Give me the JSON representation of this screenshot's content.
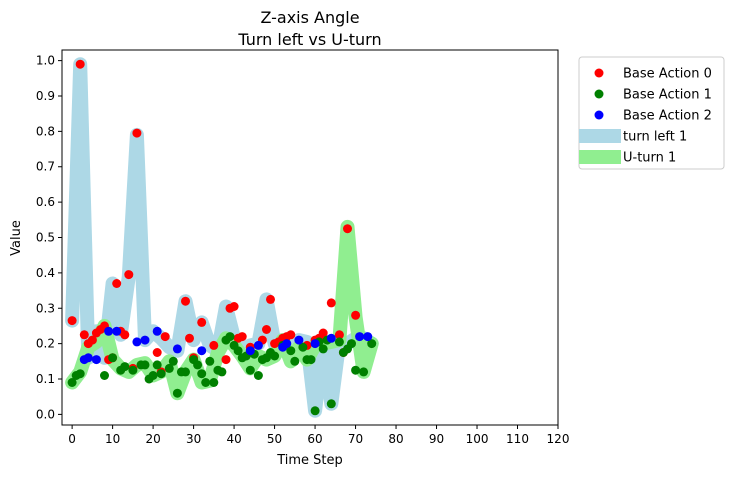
{
  "chart_data": {
    "type": "scatter",
    "title": "Z-axis Angle",
    "subtitle": "Turn left vs U-turn",
    "xlabel": "Time Step",
    "ylabel": "Value",
    "xlim": [
      -2.5,
      120
    ],
    "ylim": [
      -0.03,
      1.03
    ],
    "xticks": [
      0,
      10,
      20,
      30,
      40,
      50,
      60,
      70,
      80,
      90,
      100,
      110,
      120
    ],
    "xtick_labels": [
      "0",
      "10",
      "20",
      "30",
      "40",
      "50",
      "60",
      "70",
      "80",
      "90",
      "100",
      "110",
      "120"
    ],
    "yticks": [
      0.0,
      0.1,
      0.2,
      0.3,
      0.4,
      0.5,
      0.6,
      0.7,
      0.8,
      0.9,
      1.0
    ],
    "ytick_labels": [
      "0.0",
      "0.1",
      "0.2",
      "0.3",
      "0.4",
      "0.5",
      "0.6",
      "0.7",
      "0.8",
      "0.9",
      "1.0"
    ],
    "grid": false,
    "legend_position": "outside-right-top",
    "colors": {
      "base_action_0": "#ff0000",
      "base_action_1": "#008000",
      "base_action_2": "#0000ff",
      "turn_left_band": "#add8e6",
      "uturn_band": "#90ee90"
    },
    "bands": [
      {
        "name": "turn left 1",
        "color": "#add8e6",
        "x": [
          0,
          2,
          4,
          6,
          8,
          10,
          12,
          14,
          16,
          18,
          20,
          22,
          24,
          26,
          28,
          30,
          32,
          34,
          36,
          38,
          40,
          42,
          44,
          46,
          48,
          50,
          52,
          54,
          56,
          58,
          60,
          62,
          64,
          66,
          68,
          70,
          72,
          74
        ],
        "y": [
          0.265,
          0.99,
          0.16,
          0.235,
          0.16,
          0.37,
          0.225,
          0.39,
          0.79,
          0.21,
          0.235,
          0.215,
          0.19,
          0.18,
          0.32,
          0.21,
          0.26,
          0.195,
          0.18,
          0.305,
          0.215,
          0.185,
          0.195,
          0.2,
          0.325,
          0.2,
          0.21,
          0.2,
          0.21,
          0.205,
          0.01,
          0.21,
          0.03,
          0.205,
          0.2,
          0.215,
          0.215,
          0.2
        ]
      },
      {
        "name": "U-turn 1",
        "color": "#90ee90",
        "x": [
          0,
          2,
          4,
          6,
          8,
          10,
          12,
          14,
          16,
          18,
          20,
          22,
          24,
          26,
          28,
          30,
          32,
          34,
          36,
          38,
          40,
          42,
          44,
          46,
          48,
          50,
          52,
          54,
          56,
          58,
          60,
          62,
          64,
          66,
          68,
          70,
          72,
          74
        ],
        "y": [
          0.09,
          0.12,
          0.19,
          0.205,
          0.25,
          0.155,
          0.13,
          0.12,
          0.14,
          0.145,
          0.11,
          0.12,
          0.15,
          0.06,
          0.12,
          0.155,
          0.09,
          0.095,
          0.175,
          0.215,
          0.195,
          0.165,
          0.13,
          0.165,
          0.155,
          0.165,
          0.21,
          0.15,
          0.19,
          0.155,
          0.195,
          0.2,
          0.205,
          0.21,
          0.53,
          0.275,
          0.12,
          0.2
        ]
      }
    ],
    "series": [
      {
        "name": "Base Action 0",
        "color": "#ff0000",
        "points": [
          [
            0,
            0.265
          ],
          [
            2,
            0.99
          ],
          [
            3,
            0.225
          ],
          [
            4,
            0.2
          ],
          [
            5,
            0.21
          ],
          [
            6,
            0.23
          ],
          [
            7,
            0.24
          ],
          [
            8,
            0.25
          ],
          [
            9,
            0.155
          ],
          [
            10,
            0.16
          ],
          [
            11,
            0.37
          ],
          [
            12,
            0.235
          ],
          [
            13,
            0.225
          ],
          [
            14,
            0.395
          ],
          [
            15,
            0.13
          ],
          [
            16,
            0.795
          ],
          [
            21,
            0.175
          ],
          [
            22,
            0.12
          ],
          [
            23,
            0.22
          ],
          [
            28,
            0.32
          ],
          [
            29,
            0.215
          ],
          [
            30,
            0.16
          ],
          [
            32,
            0.26
          ],
          [
            35,
            0.195
          ],
          [
            38,
            0.155
          ],
          [
            39,
            0.3
          ],
          [
            40,
            0.305
          ],
          [
            41,
            0.215
          ],
          [
            42,
            0.22
          ],
          [
            44,
            0.19
          ],
          [
            47,
            0.21
          ],
          [
            48,
            0.24
          ],
          [
            49,
            0.325
          ],
          [
            50,
            0.2
          ],
          [
            51,
            0.205
          ],
          [
            52,
            0.215
          ],
          [
            53,
            0.22
          ],
          [
            54,
            0.225
          ],
          [
            58,
            0.195
          ],
          [
            60,
            0.21
          ],
          [
            61,
            0.215
          ],
          [
            62,
            0.23
          ],
          [
            64,
            0.315
          ],
          [
            66,
            0.225
          ],
          [
            67,
            0.175
          ],
          [
            68,
            0.525
          ],
          [
            70,
            0.28
          ]
        ]
      },
      {
        "name": "Base Action 1",
        "color": "#008000",
        "points": [
          [
            0,
            0.09
          ],
          [
            1,
            0.11
          ],
          [
            2,
            0.115
          ],
          [
            8,
            0.11
          ],
          [
            10,
            0.16
          ],
          [
            12,
            0.125
          ],
          [
            13,
            0.135
          ],
          [
            15,
            0.125
          ],
          [
            17,
            0.14
          ],
          [
            18,
            0.14
          ],
          [
            19,
            0.1
          ],
          [
            20,
            0.11
          ],
          [
            21,
            0.14
          ],
          [
            22,
            0.115
          ],
          [
            24,
            0.13
          ],
          [
            25,
            0.15
          ],
          [
            26,
            0.06
          ],
          [
            27,
            0.12
          ],
          [
            28,
            0.12
          ],
          [
            30,
            0.155
          ],
          [
            31,
            0.14
          ],
          [
            32,
            0.115
          ],
          [
            33,
            0.09
          ],
          [
            34,
            0.15
          ],
          [
            35,
            0.09
          ],
          [
            36,
            0.125
          ],
          [
            37,
            0.12
          ],
          [
            38,
            0.21
          ],
          [
            39,
            0.22
          ],
          [
            40,
            0.195
          ],
          [
            41,
            0.18
          ],
          [
            42,
            0.16
          ],
          [
            43,
            0.165
          ],
          [
            44,
            0.125
          ],
          [
            45,
            0.17
          ],
          [
            46,
            0.11
          ],
          [
            47,
            0.155
          ],
          [
            48,
            0.16
          ],
          [
            49,
            0.175
          ],
          [
            50,
            0.165
          ],
          [
            52,
            0.195
          ],
          [
            54,
            0.18
          ],
          [
            55,
            0.15
          ],
          [
            57,
            0.19
          ],
          [
            58,
            0.155
          ],
          [
            59,
            0.155
          ],
          [
            60,
            0.01
          ],
          [
            61,
            0.205
          ],
          [
            62,
            0.185
          ],
          [
            63,
            0.21
          ],
          [
            64,
            0.03
          ],
          [
            66,
            0.205
          ],
          [
            67,
            0.175
          ],
          [
            68,
            0.185
          ],
          [
            69,
            0.2
          ],
          [
            70,
            0.125
          ],
          [
            72,
            0.12
          ],
          [
            74,
            0.2
          ]
        ]
      },
      {
        "name": "Base Action 2",
        "color": "#0000ff",
        "points": [
          [
            3,
            0.155
          ],
          [
            4,
            0.16
          ],
          [
            6,
            0.155
          ],
          [
            9,
            0.235
          ],
          [
            11,
            0.235
          ],
          [
            16,
            0.205
          ],
          [
            18,
            0.21
          ],
          [
            21,
            0.235
          ],
          [
            26,
            0.185
          ],
          [
            32,
            0.18
          ],
          [
            44,
            0.18
          ],
          [
            46,
            0.195
          ],
          [
            52,
            0.19
          ],
          [
            53,
            0.2
          ],
          [
            56,
            0.21
          ],
          [
            60,
            0.2
          ],
          [
            64,
            0.215
          ],
          [
            71,
            0.22
          ],
          [
            73,
            0.22
          ]
        ]
      }
    ]
  }
}
